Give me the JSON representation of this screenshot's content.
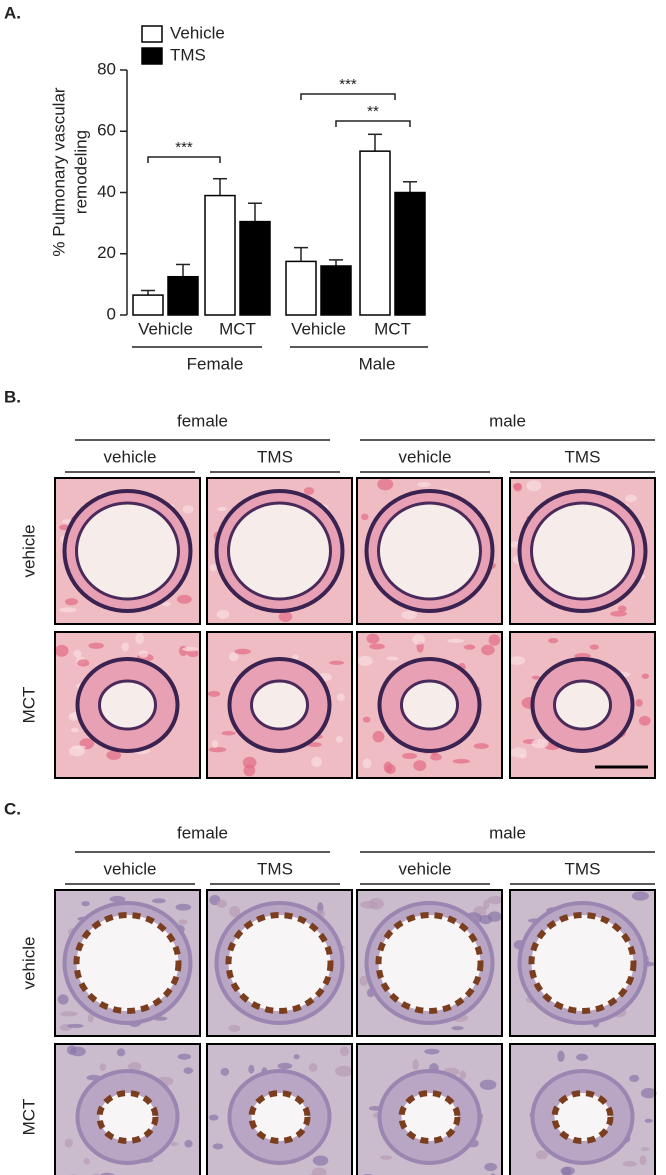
{
  "chart_data": {
    "type": "bar",
    "panel_label": "A.",
    "ylabel_lines": [
      "% Pulmonary vascular",
      "remodeling"
    ],
    "categories": [
      "Vehicle",
      "MCT",
      "Vehicle",
      "MCT"
    ],
    "groups": [
      "Female",
      "Male"
    ],
    "series": [
      {
        "name": "Vehicle",
        "color": "#ffffff",
        "values": [
          6.5,
          39,
          17.5,
          53.5
        ],
        "errors": [
          1.5,
          5.5,
          4.5,
          5.5
        ]
      },
      {
        "name": "TMS",
        "color": "#000000",
        "values": [
          12.5,
          30.5,
          16,
          40
        ],
        "errors": [
          4,
          6,
          2,
          3.5
        ]
      }
    ],
    "ylim": [
      0,
      80
    ],
    "yticks": [
      0,
      20,
      40,
      60,
      80
    ],
    "annotations": [
      "***",
      "***",
      "**"
    ]
  },
  "panels": [
    {
      "label": "B.",
      "groups": [
        "female",
        "male"
      ],
      "columns": [
        "vehicle",
        "TMS",
        "vehicle",
        "TMS"
      ],
      "rows": [
        "vehicle",
        "MCT"
      ]
    },
    {
      "label": "C.",
      "groups": [
        "female",
        "male"
      ],
      "columns": [
        "vehicle",
        "TMS",
        "vehicle",
        "TMS"
      ],
      "rows": [
        "vehicle",
        "MCT"
      ]
    }
  ]
}
